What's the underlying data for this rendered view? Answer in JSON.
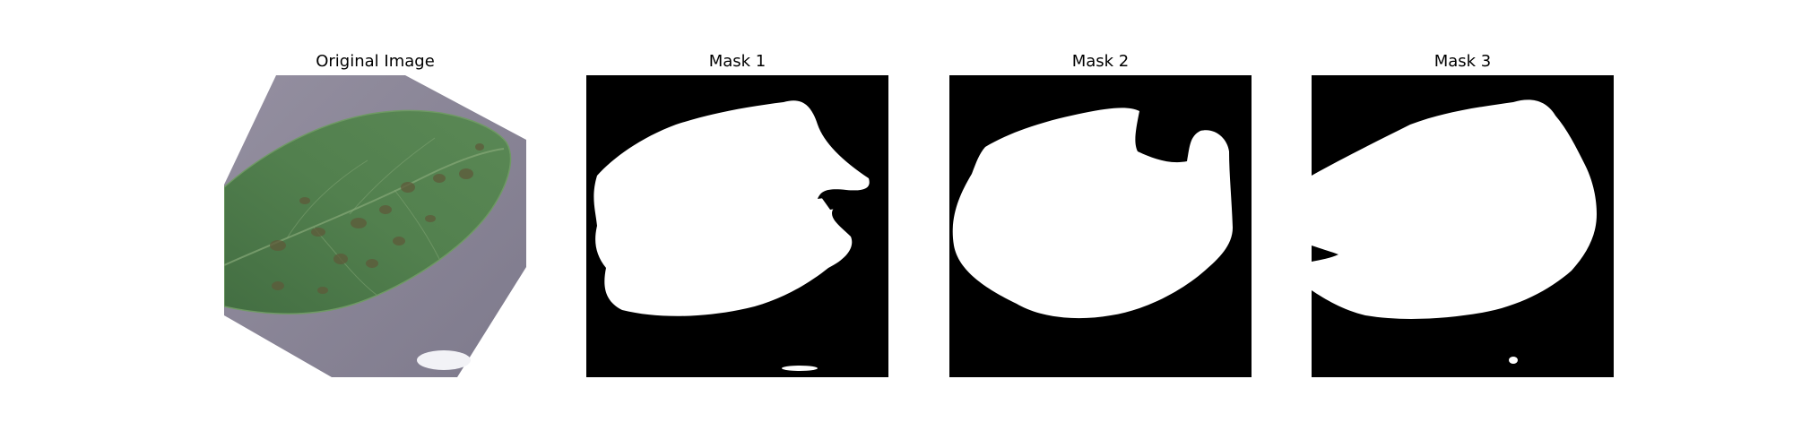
{
  "figure": {
    "panels": [
      {
        "title": "Original Image"
      },
      {
        "title": "Mask 1"
      },
      {
        "title": "Mask 2"
      },
      {
        "title": "Mask 3"
      }
    ]
  },
  "colors": {
    "background": "#ffffff",
    "mask_background": "#000000",
    "mask_foreground": "#ffffff",
    "leaf_green": "#4f7a4c",
    "leaf_dark": "#3f6640",
    "surface_gray": "#8a8696",
    "spot_brown": "#5a5a3a"
  }
}
